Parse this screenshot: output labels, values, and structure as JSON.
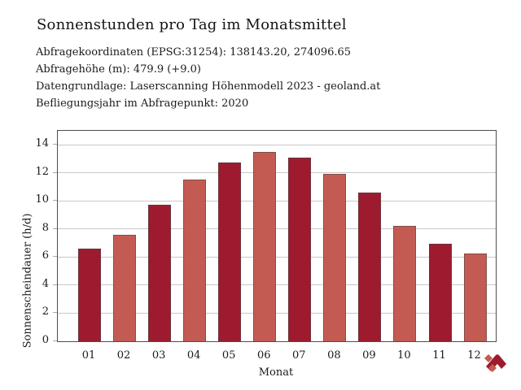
{
  "header": {
    "title": "Sonnenstunden pro Tag im Monatsmittel",
    "meta_lines": [
      "Abfragekoordinaten (EPSG:31254): 138143.20, 274096.65",
      "Abfragehöhe (m): 479.9 (+9.0)",
      "Datengrundlage: Laserscanning Höhenmodell 2023 - geoland.at",
      "Befliegungsjahr im Abfragepunkt: 2020"
    ]
  },
  "chart_data": {
    "type": "bar",
    "title": "Sonnenstunden pro Tag im Monatsmittel",
    "categories": [
      "01",
      "02",
      "03",
      "04",
      "05",
      "06",
      "07",
      "08",
      "09",
      "10",
      "11",
      "12"
    ],
    "values": [
      6.6,
      7.6,
      9.75,
      11.55,
      12.75,
      13.5,
      13.1,
      11.95,
      10.6,
      8.25,
      6.95,
      6.25
    ],
    "xlabel": "Monat",
    "ylabel": "Sonnenscheindauer (h/d)",
    "ylim": [
      0,
      15
    ],
    "yticks": [
      0,
      2,
      4,
      6,
      8,
      10,
      12,
      14
    ],
    "grid": true,
    "legend": "none",
    "bar_palette_alternating": [
      "#9e1b2f",
      "#c45b52"
    ]
  },
  "colors": {
    "bar_dark": "#9e1b2f",
    "bar_light": "#c45b52",
    "axis_border": "#4d4d4d",
    "gridline": "#c8c8c8",
    "text": "#111111",
    "background": "#ffffff"
  },
  "logo": {
    "name": "geoland-ribbon-logo"
  }
}
